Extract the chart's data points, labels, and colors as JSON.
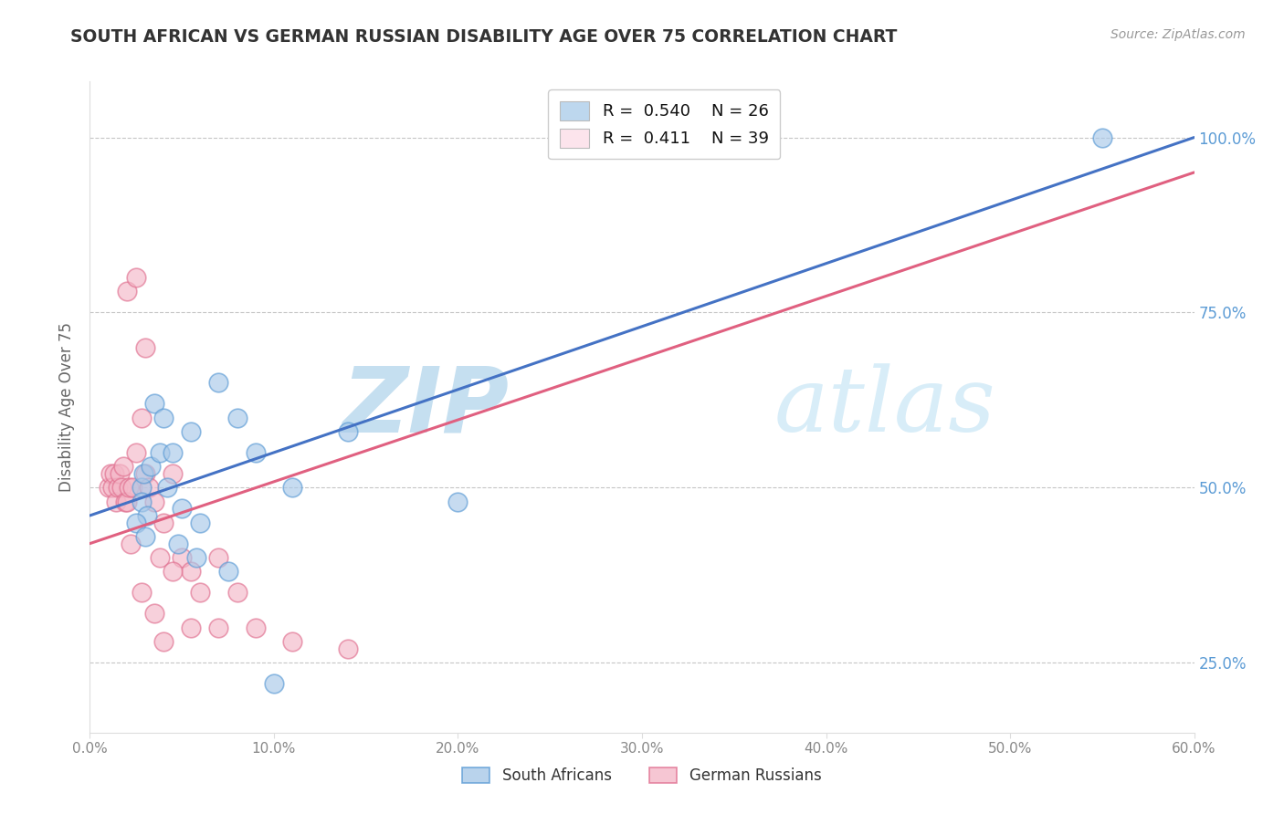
{
  "title": "SOUTH AFRICAN VS GERMAN RUSSIAN DISABILITY AGE OVER 75 CORRELATION CHART",
  "source": "Source: ZipAtlas.com",
  "ylabel": "Disability Age Over 75",
  "xlim": [
    0.0,
    60.0
  ],
  "ylim": [
    15.0,
    108.0
  ],
  "xticks": [
    0.0,
    10.0,
    20.0,
    30.0,
    40.0,
    50.0,
    60.0
  ],
  "xtick_labels": [
    "0.0%",
    "10.0%",
    "20.0%",
    "30.0%",
    "40.0%",
    "50.0%",
    "60.0%"
  ],
  "yticks": [
    25.0,
    50.0,
    75.0,
    100.0
  ],
  "ytick_labels": [
    "25.0%",
    "50.0%",
    "75.0%",
    "100.0%"
  ],
  "blue_color": "#a8c8e8",
  "pink_color": "#f4b8c8",
  "blue_edge": "#5b9bd5",
  "pink_edge": "#e07090",
  "trend_blue": "#4472c4",
  "trend_pink": "#e06080",
  "legend_blue_label": "R =  0.540    N = 26",
  "legend_pink_label": "R =  0.411    N = 39",
  "legend_blue_box": "#bdd7ee",
  "legend_pink_box": "#fce4ec",
  "watermark_zip": "ZIP",
  "watermark_atlas": "atlas",
  "legend_bottom_blue": "South Africans",
  "legend_bottom_pink": "German Russians",
  "blue_scatter_x": [
    2.8,
    2.8,
    2.9,
    3.1,
    3.3,
    3.5,
    3.8,
    4.0,
    4.2,
    4.5,
    5.0,
    5.5,
    6.0,
    7.0,
    8.0,
    9.0,
    11.0,
    14.0,
    20.0,
    55.0,
    2.5,
    3.0,
    4.8,
    5.8,
    7.5,
    10.0
  ],
  "blue_scatter_y": [
    50.0,
    48.0,
    52.0,
    46.0,
    53.0,
    62.0,
    55.0,
    60.0,
    50.0,
    55.0,
    47.0,
    58.0,
    45.0,
    65.0,
    60.0,
    55.0,
    50.0,
    58.0,
    48.0,
    100.0,
    45.0,
    43.0,
    42.0,
    40.0,
    38.0,
    22.0
  ],
  "pink_scatter_x": [
    1.0,
    1.1,
    1.2,
    1.3,
    1.4,
    1.5,
    1.6,
    1.7,
    1.8,
    1.9,
    2.0,
    2.1,
    2.2,
    2.3,
    2.5,
    2.8,
    3.0,
    3.2,
    3.5,
    4.0,
    4.5,
    5.0,
    5.5,
    6.0,
    7.0,
    8.0,
    9.0,
    11.0,
    14.0,
    2.0,
    2.5,
    3.0,
    3.8,
    4.5,
    5.5,
    7.0,
    2.8,
    3.5,
    4.0
  ],
  "pink_scatter_y": [
    50.0,
    52.0,
    50.0,
    52.0,
    48.0,
    50.0,
    52.0,
    50.0,
    53.0,
    48.0,
    48.0,
    50.0,
    42.0,
    50.0,
    55.0,
    60.0,
    52.0,
    50.0,
    48.0,
    45.0,
    52.0,
    40.0,
    38.0,
    35.0,
    40.0,
    35.0,
    30.0,
    28.0,
    27.0,
    78.0,
    80.0,
    70.0,
    40.0,
    38.0,
    30.0,
    30.0,
    35.0,
    32.0,
    28.0
  ],
  "blue_trend_x0": 0.0,
  "blue_trend_y0": 46.0,
  "blue_trend_x1": 60.0,
  "blue_trend_y1": 100.0,
  "pink_trend_x0": 0.0,
  "pink_trend_y0": 42.0,
  "pink_trend_x1": 60.0,
  "pink_trend_y1": 95.0,
  "title_color": "#333333",
  "grid_color": "#c0c0c0",
  "watermark_color_zip": "#c5dff0",
  "watermark_color_atlas": "#d8edf8",
  "right_ytick_color": "#5b9bd5",
  "tick_label_color": "#888888"
}
